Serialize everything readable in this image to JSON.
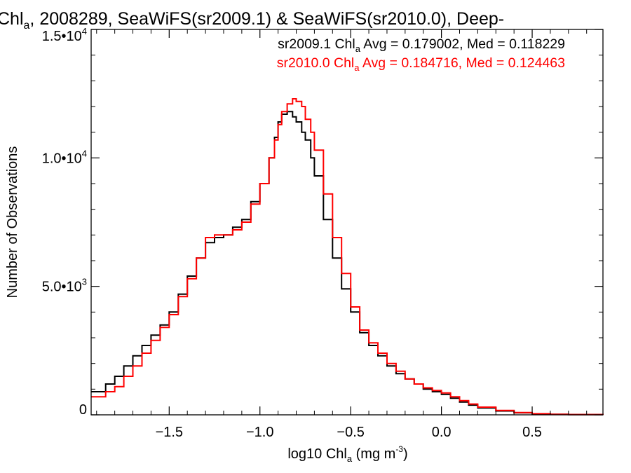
{
  "chart_data": {
    "type": "line",
    "title": {
      "pre": "Chl",
      "sub": "a",
      "post": ", 2008289, SeaWiFS(sr2009.1) & SeaWiFS(sr2010.0), Deep-"
    },
    "xlabel": {
      "pre": "log10 Chl",
      "sub": "a",
      "mid": " (mg m",
      "sup": "-3",
      "post": ")"
    },
    "ylabel": "Number of Observations",
    "xlim": [
      -1.93,
      0.89
    ],
    "ylim": [
      0,
      15000
    ],
    "xticks": [
      -1.5,
      -1.0,
      -0.5,
      0.0,
      0.5
    ],
    "xtick_labels": [
      "−1.5",
      "−1.0",
      "−0.5",
      "0.0",
      "0.5"
    ],
    "yticks": [
      {
        "value": 0,
        "mantissa": "0",
        "exponent": ""
      },
      {
        "value": 5000,
        "mantissa": "5.0•10",
        "exponent": "3"
      },
      {
        "value": 10000,
        "mantissa": "1.0•10",
        "exponent": "4"
      },
      {
        "value": 15000,
        "mantissa": "1.5•10",
        "exponent": "4"
      }
    ],
    "legend_position": "top-right",
    "grid": false,
    "series": [
      {
        "name": "sr2009.1",
        "color": "#000000",
        "legend": {
          "pre": "sr2009.1 Chl",
          "sub": "a",
          "post": " Avg = 0.179002, Med = 0.118229"
        },
        "x": [
          -1.93,
          -1.85,
          -1.8,
          -1.75,
          -1.7,
          -1.65,
          -1.6,
          -1.55,
          -1.5,
          -1.45,
          -1.4,
          -1.35,
          -1.3,
          -1.25,
          -1.2,
          -1.15,
          -1.1,
          -1.05,
          -1.0,
          -0.95,
          -0.92,
          -0.9,
          -0.88,
          -0.85,
          -0.82,
          -0.8,
          -0.77,
          -0.75,
          -0.72,
          -0.7,
          -0.65,
          -0.6,
          -0.55,
          -0.5,
          -0.45,
          -0.4,
          -0.35,
          -0.3,
          -0.25,
          -0.2,
          -0.15,
          -0.1,
          -0.05,
          0.0,
          0.05,
          0.1,
          0.15,
          0.2,
          0.3,
          0.4,
          0.5,
          0.6,
          0.7,
          0.89
        ],
        "y": [
          900,
          1200,
          1500,
          1900,
          2300,
          2700,
          3100,
          3500,
          4000,
          4700,
          5400,
          6100,
          6700,
          6900,
          7000,
          7300,
          7600,
          8300,
          9000,
          10000,
          10800,
          11400,
          11700,
          11800,
          11600,
          11400,
          11000,
          10700,
          10000,
          9300,
          7600,
          6100,
          4900,
          4000,
          3200,
          2700,
          2300,
          1900,
          1600,
          1400,
          1200,
          1000,
          900,
          800,
          650,
          500,
          380,
          270,
          150,
          80,
          40,
          20,
          10,
          0
        ]
      },
      {
        "name": "sr2010.0",
        "color": "#ff0000",
        "legend": {
          "pre": "sr2010.0 Chl",
          "sub": "a",
          "post": " Avg = 0.184716, Med = 0.124463"
        },
        "x": [
          -1.93,
          -1.85,
          -1.8,
          -1.75,
          -1.7,
          -1.65,
          -1.6,
          -1.55,
          -1.5,
          -1.45,
          -1.4,
          -1.35,
          -1.3,
          -1.25,
          -1.2,
          -1.15,
          -1.1,
          -1.05,
          -1.0,
          -0.95,
          -0.92,
          -0.9,
          -0.88,
          -0.85,
          -0.82,
          -0.8,
          -0.77,
          -0.75,
          -0.72,
          -0.7,
          -0.65,
          -0.6,
          -0.55,
          -0.5,
          -0.45,
          -0.4,
          -0.35,
          -0.3,
          -0.25,
          -0.2,
          -0.15,
          -0.1,
          -0.05,
          0.0,
          0.05,
          0.1,
          0.15,
          0.2,
          0.3,
          0.4,
          0.5,
          0.6,
          0.7,
          0.89
        ],
        "y": [
          700,
          900,
          1100,
          1500,
          1900,
          2400,
          2900,
          3400,
          3900,
          4600,
          5300,
          6100,
          6900,
          7000,
          7000,
          7200,
          7500,
          8200,
          9000,
          10000,
          10700,
          11300,
          11800,
          12100,
          12300,
          12200,
          12000,
          11500,
          11000,
          10300,
          8600,
          6900,
          5500,
          4200,
          3300,
          2800,
          2400,
          2000,
          1700,
          1400,
          1200,
          1050,
          950,
          850,
          700,
          550,
          420,
          300,
          170,
          90,
          45,
          20,
          10,
          0
        ]
      }
    ]
  }
}
